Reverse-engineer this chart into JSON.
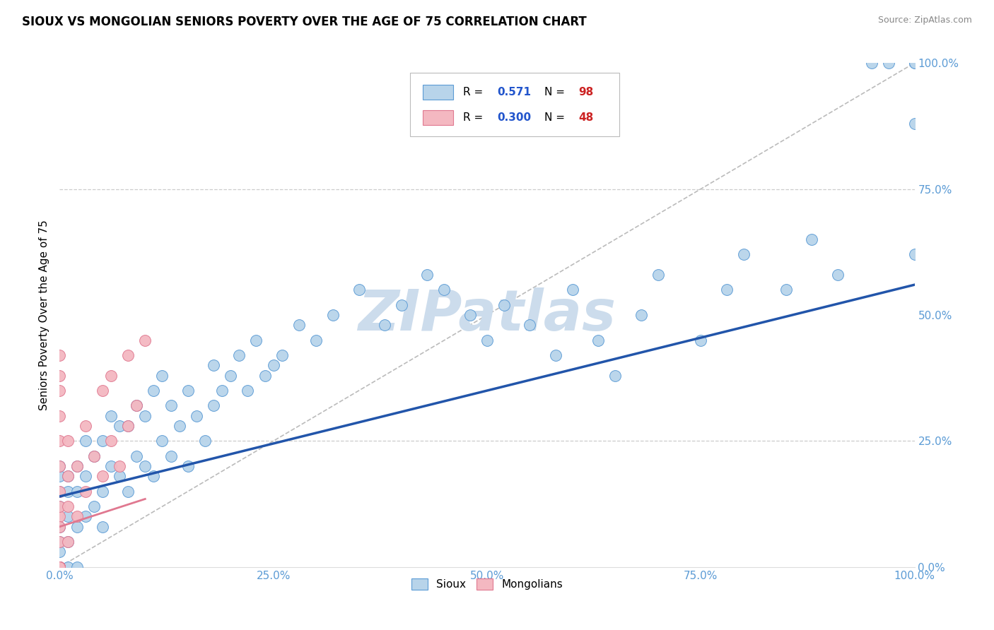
{
  "title": "SIOUX VS MONGOLIAN SENIORS POVERTY OVER THE AGE OF 75 CORRELATION CHART",
  "source": "Source: ZipAtlas.com",
  "ylabel": "Seniors Poverty Over the Age of 75",
  "sioux_R": 0.571,
  "sioux_N": 98,
  "mongolian_R": 0.3,
  "mongolian_N": 48,
  "sioux_color": "#b8d4ea",
  "mongolian_color": "#f4b8c1",
  "sioux_edge_color": "#5b9bd5",
  "mongolian_edge_color": "#e07890",
  "sioux_line_color": "#2255aa",
  "mongolian_line_color": "#e07890",
  "identity_line_color": "#bbbbbb",
  "grid_color": "#cccccc",
  "tick_color": "#5b9bd5",
  "legend_R_color": "#2255cc",
  "legend_N_color": "#cc2222",
  "watermark_color": "#ccdcec",
  "background_color": "#ffffff",
  "sioux_line_intercept": 0.14,
  "sioux_line_slope": 0.42,
  "mongolian_line_intercept": 0.08,
  "mongolian_line_slope": 0.55,
  "sioux_x": [
    0.0,
    0.0,
    0.0,
    0.0,
    0.0,
    0.0,
    0.0,
    0.0,
    0.0,
    0.0,
    0.0,
    0.0,
    0.0,
    0.0,
    0.0,
    0.0,
    0.0,
    0.0,
    0.0,
    0.0,
    0.01,
    0.01,
    0.01,
    0.01,
    0.01,
    0.02,
    0.02,
    0.02,
    0.02,
    0.03,
    0.03,
    0.03,
    0.04,
    0.04,
    0.05,
    0.05,
    0.05,
    0.06,
    0.06,
    0.07,
    0.07,
    0.08,
    0.08,
    0.09,
    0.09,
    0.1,
    0.1,
    0.11,
    0.11,
    0.12,
    0.12,
    0.13,
    0.13,
    0.14,
    0.15,
    0.15,
    0.16,
    0.17,
    0.18,
    0.18,
    0.19,
    0.2,
    0.21,
    0.22,
    0.23,
    0.24,
    0.25,
    0.26,
    0.28,
    0.3,
    0.32,
    0.35,
    0.38,
    0.4,
    0.43,
    0.45,
    0.48,
    0.5,
    0.52,
    0.55,
    0.58,
    0.6,
    0.63,
    0.65,
    0.68,
    0.7,
    0.75,
    0.78,
    0.8,
    0.85,
    0.88,
    0.91,
    0.95,
    0.97,
    1.0,
    1.0,
    1.0,
    1.0
  ],
  "sioux_y": [
    0.0,
    0.0,
    0.0,
    0.0,
    0.0,
    0.0,
    0.0,
    0.0,
    0.0,
    0.0,
    0.0,
    0.0,
    0.0,
    0.03,
    0.05,
    0.08,
    0.12,
    0.15,
    0.18,
    0.2,
    0.0,
    0.05,
    0.1,
    0.15,
    0.18,
    0.0,
    0.08,
    0.15,
    0.2,
    0.1,
    0.18,
    0.25,
    0.12,
    0.22,
    0.08,
    0.15,
    0.25,
    0.2,
    0.3,
    0.18,
    0.28,
    0.15,
    0.28,
    0.22,
    0.32,
    0.2,
    0.3,
    0.18,
    0.35,
    0.25,
    0.38,
    0.22,
    0.32,
    0.28,
    0.2,
    0.35,
    0.3,
    0.25,
    0.32,
    0.4,
    0.35,
    0.38,
    0.42,
    0.35,
    0.45,
    0.38,
    0.4,
    0.42,
    0.48,
    0.45,
    0.5,
    0.55,
    0.48,
    0.52,
    0.58,
    0.55,
    0.5,
    0.45,
    0.52,
    0.48,
    0.42,
    0.55,
    0.45,
    0.38,
    0.5,
    0.58,
    0.45,
    0.55,
    0.62,
    0.55,
    0.65,
    0.58,
    1.0,
    1.0,
    1.0,
    1.0,
    0.88,
    0.62
  ],
  "mongolian_x": [
    0.0,
    0.0,
    0.0,
    0.0,
    0.0,
    0.0,
    0.0,
    0.0,
    0.0,
    0.0,
    0.0,
    0.0,
    0.0,
    0.0,
    0.0,
    0.0,
    0.0,
    0.0,
    0.0,
    0.0,
    0.0,
    0.0,
    0.0,
    0.0,
    0.0,
    0.0,
    0.0,
    0.0,
    0.0,
    0.0,
    0.01,
    0.01,
    0.01,
    0.01,
    0.02,
    0.02,
    0.03,
    0.03,
    0.04,
    0.05,
    0.05,
    0.06,
    0.06,
    0.07,
    0.08,
    0.08,
    0.09,
    0.1
  ],
  "mongolian_y": [
    0.0,
    0.0,
    0.0,
    0.0,
    0.0,
    0.0,
    0.0,
    0.0,
    0.0,
    0.0,
    0.0,
    0.0,
    0.0,
    0.0,
    0.0,
    0.0,
    0.0,
    0.0,
    0.0,
    0.05,
    0.1,
    0.15,
    0.2,
    0.25,
    0.3,
    0.35,
    0.38,
    0.42,
    0.08,
    0.12,
    0.05,
    0.12,
    0.18,
    0.25,
    0.1,
    0.2,
    0.15,
    0.28,
    0.22,
    0.18,
    0.35,
    0.25,
    0.38,
    0.2,
    0.28,
    0.42,
    0.32,
    0.45
  ],
  "xlim": [
    0.0,
    1.0
  ],
  "ylim": [
    0.0,
    1.0
  ],
  "xticks": [
    0.0,
    0.25,
    0.5,
    0.75,
    1.0
  ],
  "yticks": [
    0.0,
    0.25,
    0.5,
    0.75,
    1.0
  ]
}
